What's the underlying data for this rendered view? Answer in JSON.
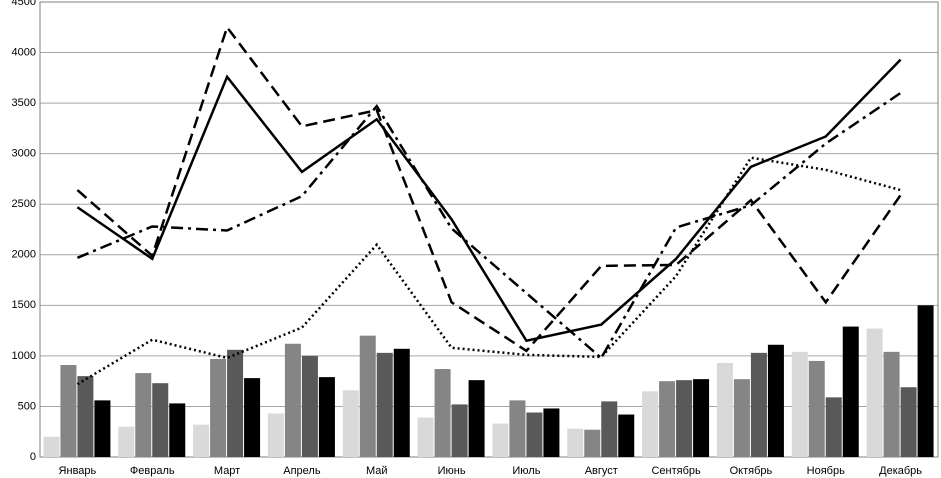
{
  "chart_data": {
    "type": "combo",
    "categories": [
      "Январь",
      "Февраль",
      "Март",
      "Апрель",
      "Май",
      "Июнь",
      "Июль",
      "Август",
      "Сентябрь",
      "Октябрь",
      "Ноябрь",
      "Декабрь"
    ],
    "ylim": [
      0,
      4500
    ],
    "yticks": [
      0,
      500,
      1000,
      1500,
      2000,
      2500,
      3000,
      3500,
      4000,
      4500
    ],
    "grid": true,
    "series": [
      {
        "type": "bar",
        "color": "#d9d9d9",
        "values": [
          200,
          300,
          320,
          430,
          660,
          390,
          330,
          280,
          650,
          930,
          1040,
          1270
        ]
      },
      {
        "type": "bar",
        "color": "#858585",
        "values": [
          910,
          830,
          970,
          1120,
          1200,
          870,
          560,
          270,
          750,
          770,
          950,
          1040
        ]
      },
      {
        "type": "bar",
        "color": "#595959",
        "values": [
          800,
          730,
          1060,
          1000,
          1030,
          520,
          440,
          550,
          760,
          1030,
          590,
          690
        ]
      },
      {
        "type": "bar",
        "color": "#000000",
        "values": [
          560,
          530,
          780,
          790,
          1070,
          760,
          480,
          420,
          770,
          1110,
          1290,
          1500
        ]
      },
      {
        "type": "line",
        "color": "#000000",
        "dash": "solid",
        "values": [
          2470,
          1960,
          3760,
          2820,
          3340,
          2350,
          1150,
          1310,
          1960,
          2870,
          3170,
          3930
        ]
      },
      {
        "type": "line",
        "color": "#000000",
        "dash": "dashed",
        "values": [
          2640,
          1990,
          4250,
          3270,
          3430,
          1530,
          1050,
          1890,
          1900,
          2540,
          1530,
          2590
        ]
      },
      {
        "type": "line",
        "color": "#000000",
        "dash": "dashdot",
        "values": [
          1970,
          2280,
          2240,
          2580,
          3470,
          2260,
          1620,
          980,
          2270,
          2490,
          3100,
          3600
        ]
      },
      {
        "type": "line",
        "color": "#000000",
        "dash": "dotted",
        "values": [
          720,
          1160,
          980,
          1280,
          2100,
          1080,
          1010,
          990,
          1790,
          2960,
          2840,
          2640
        ]
      }
    ]
  }
}
